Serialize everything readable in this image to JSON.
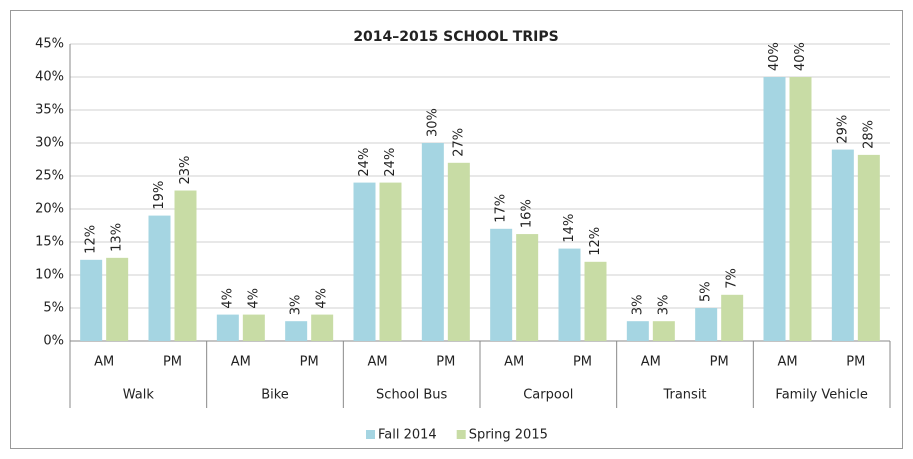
{
  "chart_data": {
    "type": "bar",
    "title": "2014–2015 SCHOOL TRIPS",
    "categories": [
      "AM",
      "PM",
      "AM",
      "PM",
      "AM",
      "PM",
      "AM",
      "PM",
      "AM",
      "PM",
      "AM",
      "PM"
    ],
    "groups": [
      "Walk",
      "Bike",
      "School Bus",
      "Carpool",
      "Transit",
      "Family Vehicle"
    ],
    "series": [
      {
        "name": "Fall 2014",
        "color": "#a5d5e2",
        "values": [
          12.3,
          19,
          4,
          3,
          24,
          30,
          17,
          14,
          3,
          5,
          40,
          29
        ],
        "value_labels": [
          "12%",
          "19%",
          "4%",
          "3%",
          "24%",
          "30%",
          "17%",
          "14%",
          "3%",
          "5%",
          "40%",
          "29%"
        ]
      },
      {
        "name": "Spring 2015",
        "color": "#c8dca5",
        "values": [
          12.6,
          22.8,
          4,
          4,
          24,
          27,
          16.2,
          12,
          3,
          7,
          40,
          28.2
        ],
        "value_labels": [
          "13%",
          "23%",
          "4%",
          "4%",
          "24%",
          "27%",
          "16%",
          "12%",
          "3%",
          "7%",
          "40%",
          "28%"
        ]
      }
    ],
    "ylim": [
      0,
      45
    ],
    "yticks": [
      {
        "value": 0,
        "label": "0%"
      },
      {
        "value": 5,
        "label": "5%"
      },
      {
        "value": 10,
        "label": "10%"
      },
      {
        "value": 15,
        "label": "15%"
      },
      {
        "value": 20,
        "label": "20%"
      },
      {
        "value": 25,
        "label": "25%"
      },
      {
        "value": 30,
        "label": "30%"
      },
      {
        "value": 35,
        "label": "35%"
      },
      {
        "value": 40,
        "label": "40%"
      },
      {
        "value": 45,
        "label": "45%"
      }
    ],
    "grid": true,
    "legend": "bottom"
  }
}
